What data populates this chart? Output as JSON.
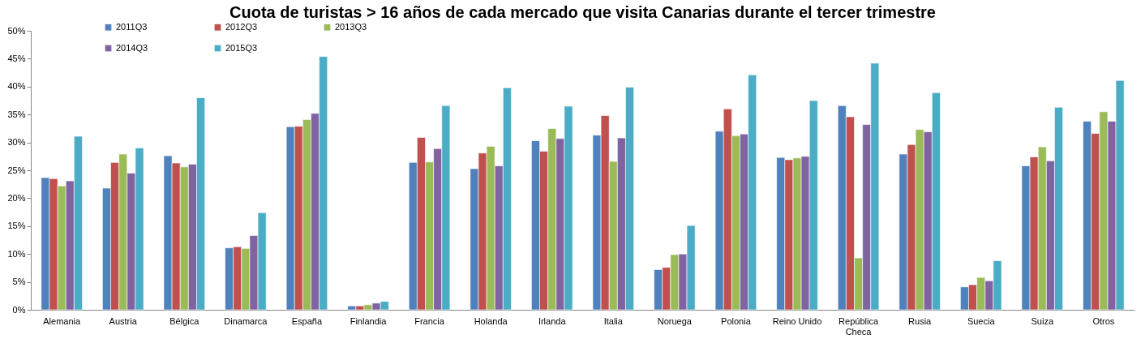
{
  "chart_data": {
    "type": "bar",
    "title": "Cuota de turistas > 16 años de cada mercado que visita Canarias durante el tercer trimestre",
    "categories": [
      "Alemania",
      "Austria",
      "Bélgica",
      "Dinamarca",
      "España",
      "Finlandia",
      "Francia",
      "Holanda",
      "Irlanda",
      "Italia",
      "Noruega",
      "Polonia",
      "Reino Unido",
      "República Checa",
      "Rusia",
      "Suecia",
      "Suiza",
      "Otros"
    ],
    "series": [
      {
        "name": "2011Q3",
        "color": "#4f81bd",
        "values": [
          23.7,
          21.8,
          27.6,
          11.1,
          32.8,
          0.7,
          26.4,
          25.3,
          30.3,
          31.3,
          7.2,
          32.0,
          27.3,
          36.6,
          27.9,
          4.1,
          25.8,
          33.8
        ]
      },
      {
        "name": "2012Q3",
        "color": "#c0504d",
        "values": [
          23.5,
          26.4,
          26.3,
          11.3,
          32.9,
          0.7,
          30.9,
          28.1,
          28.4,
          34.8,
          7.6,
          36.0,
          26.9,
          34.6,
          29.6,
          4.5,
          27.4,
          31.6
        ]
      },
      {
        "name": "2013Q3",
        "color": "#9bbb59",
        "values": [
          22.2,
          27.9,
          25.6,
          11.0,
          34.1,
          0.9,
          26.5,
          29.3,
          32.5,
          26.6,
          9.9,
          31.2,
          27.2,
          9.3,
          32.3,
          5.8,
          29.2,
          35.5
        ]
      },
      {
        "name": "2014Q3",
        "color": "#8064a2",
        "values": [
          23.1,
          24.5,
          26.1,
          13.3,
          35.2,
          1.2,
          28.9,
          25.8,
          30.7,
          30.8,
          10.0,
          31.5,
          27.5,
          33.2,
          31.9,
          5.2,
          26.7,
          33.8
        ]
      },
      {
        "name": "2015Q3",
        "color": "#4bacc6",
        "values": [
          31.1,
          29.0,
          38.0,
          17.4,
          45.4,
          1.5,
          36.6,
          39.8,
          36.5,
          39.9,
          15.1,
          42.1,
          37.5,
          44.2,
          38.9,
          8.8,
          36.3,
          41.1
        ]
      }
    ],
    "ylim": [
      0,
      50
    ],
    "yticks": [
      {
        "value": 0,
        "label": "0%"
      },
      {
        "value": 5,
        "label": "5%"
      },
      {
        "value": 10,
        "label": "10%"
      },
      {
        "value": 15,
        "label": "15%"
      },
      {
        "value": 20,
        "label": "20%"
      },
      {
        "value": 25,
        "label": "25%"
      },
      {
        "value": 30,
        "label": "30%"
      },
      {
        "value": 35,
        "label": "35%"
      },
      {
        "value": 40,
        "label": "40%"
      },
      {
        "value": 45,
        "label": "45%"
      },
      {
        "value": 50,
        "label": "50%"
      }
    ],
    "grid": false,
    "legend": "top left"
  }
}
